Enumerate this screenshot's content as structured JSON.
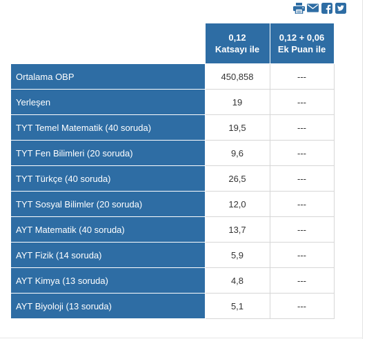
{
  "share": {
    "icons": [
      "print-icon",
      "email-icon",
      "facebook-icon",
      "twitter-icon"
    ],
    "colors": {
      "print": "#2e6da4",
      "email": "#2e6da4",
      "facebook": "#2e6da4",
      "twitter": "#2e6da4"
    }
  },
  "table": {
    "headers": [
      {
        "line1": "0,12",
        "line2": "Katsayı ile"
      },
      {
        "line1": "0,12 + 0,06",
        "line2": "Ek Puan ile"
      }
    ],
    "rows": [
      {
        "label": "Ortalama OBP",
        "v1": "450,858",
        "v2": "---"
      },
      {
        "label": "Yerleşen",
        "v1": "19",
        "v2": "---"
      },
      {
        "label": "TYT Temel Matematik (40 soruda)",
        "v1": "19,5",
        "v2": "---"
      },
      {
        "label": "TYT Fen Bilimleri (20 soruda)",
        "v1": "9,6",
        "v2": "---"
      },
      {
        "label": "TYT Türkçe (40 soruda)",
        "v1": "26,5",
        "v2": "---"
      },
      {
        "label": "TYT Sosyal Bilimler (20 soruda)",
        "v1": "12,0",
        "v2": "---"
      },
      {
        "label": "AYT Matematik (40 soruda)",
        "v1": "13,7",
        "v2": "---"
      },
      {
        "label": "AYT Fizik (14 soruda)",
        "v1": "5,9",
        "v2": "---"
      },
      {
        "label": "AYT Kimya (13 soruda)",
        "v1": "4,8",
        "v2": "---"
      },
      {
        "label": "AYT Biyoloji (13 soruda)",
        "v1": "5,1",
        "v2": "---"
      }
    ]
  },
  "colors": {
    "header_bg": "#2e6da4",
    "label_bg": "#2e6da4",
    "cell_border": "#d6d6d6"
  }
}
